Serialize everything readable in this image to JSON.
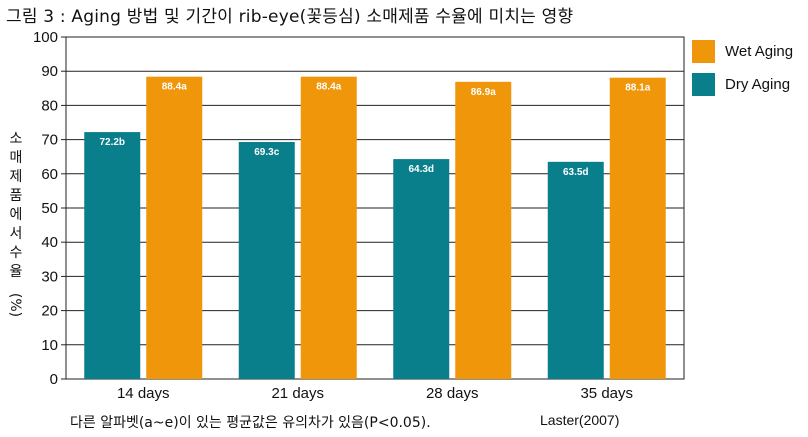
{
  "chart_data": {
    "type": "bar",
    "title": "그림 3 : Aging 방법 및 기간이 rib-eye(꽃등심) 소매제품 수율에 미치는 영향",
    "categories": [
      "14 days",
      "21 days",
      "28 days",
      "35 days"
    ],
    "series": [
      {
        "name": "Dry Aging",
        "color": "#0a7f8c",
        "values": [
          72.2,
          69.3,
          64.3,
          63.5
        ],
        "labels": [
          "72.2b",
          "69.3c",
          "64.3d",
          "63.5d"
        ]
      },
      {
        "name": "Wet Aging",
        "color": "#f0960a",
        "values": [
          88.4,
          88.4,
          86.9,
          88.1
        ],
        "labels": [
          "88.4a",
          "88.4a",
          "86.9a",
          "88.1a"
        ]
      }
    ],
    "legend": [
      "Wet Aging",
      "Dry Aging"
    ],
    "ylabel": [
      "소",
      "매",
      "제",
      "품",
      "에",
      "서",
      "수",
      "율",
      "(%)"
    ],
    "ylim": [
      0,
      100
    ],
    "yticks": [
      0,
      10,
      20,
      30,
      40,
      50,
      60,
      70,
      80,
      90,
      100
    ],
    "grid": true,
    "legend_position": "right"
  },
  "footnote": "다른 알파벳(a~e)이 있는 평균값은 유의차가 있음(P<0.05).",
  "source": "Laster(2007)"
}
